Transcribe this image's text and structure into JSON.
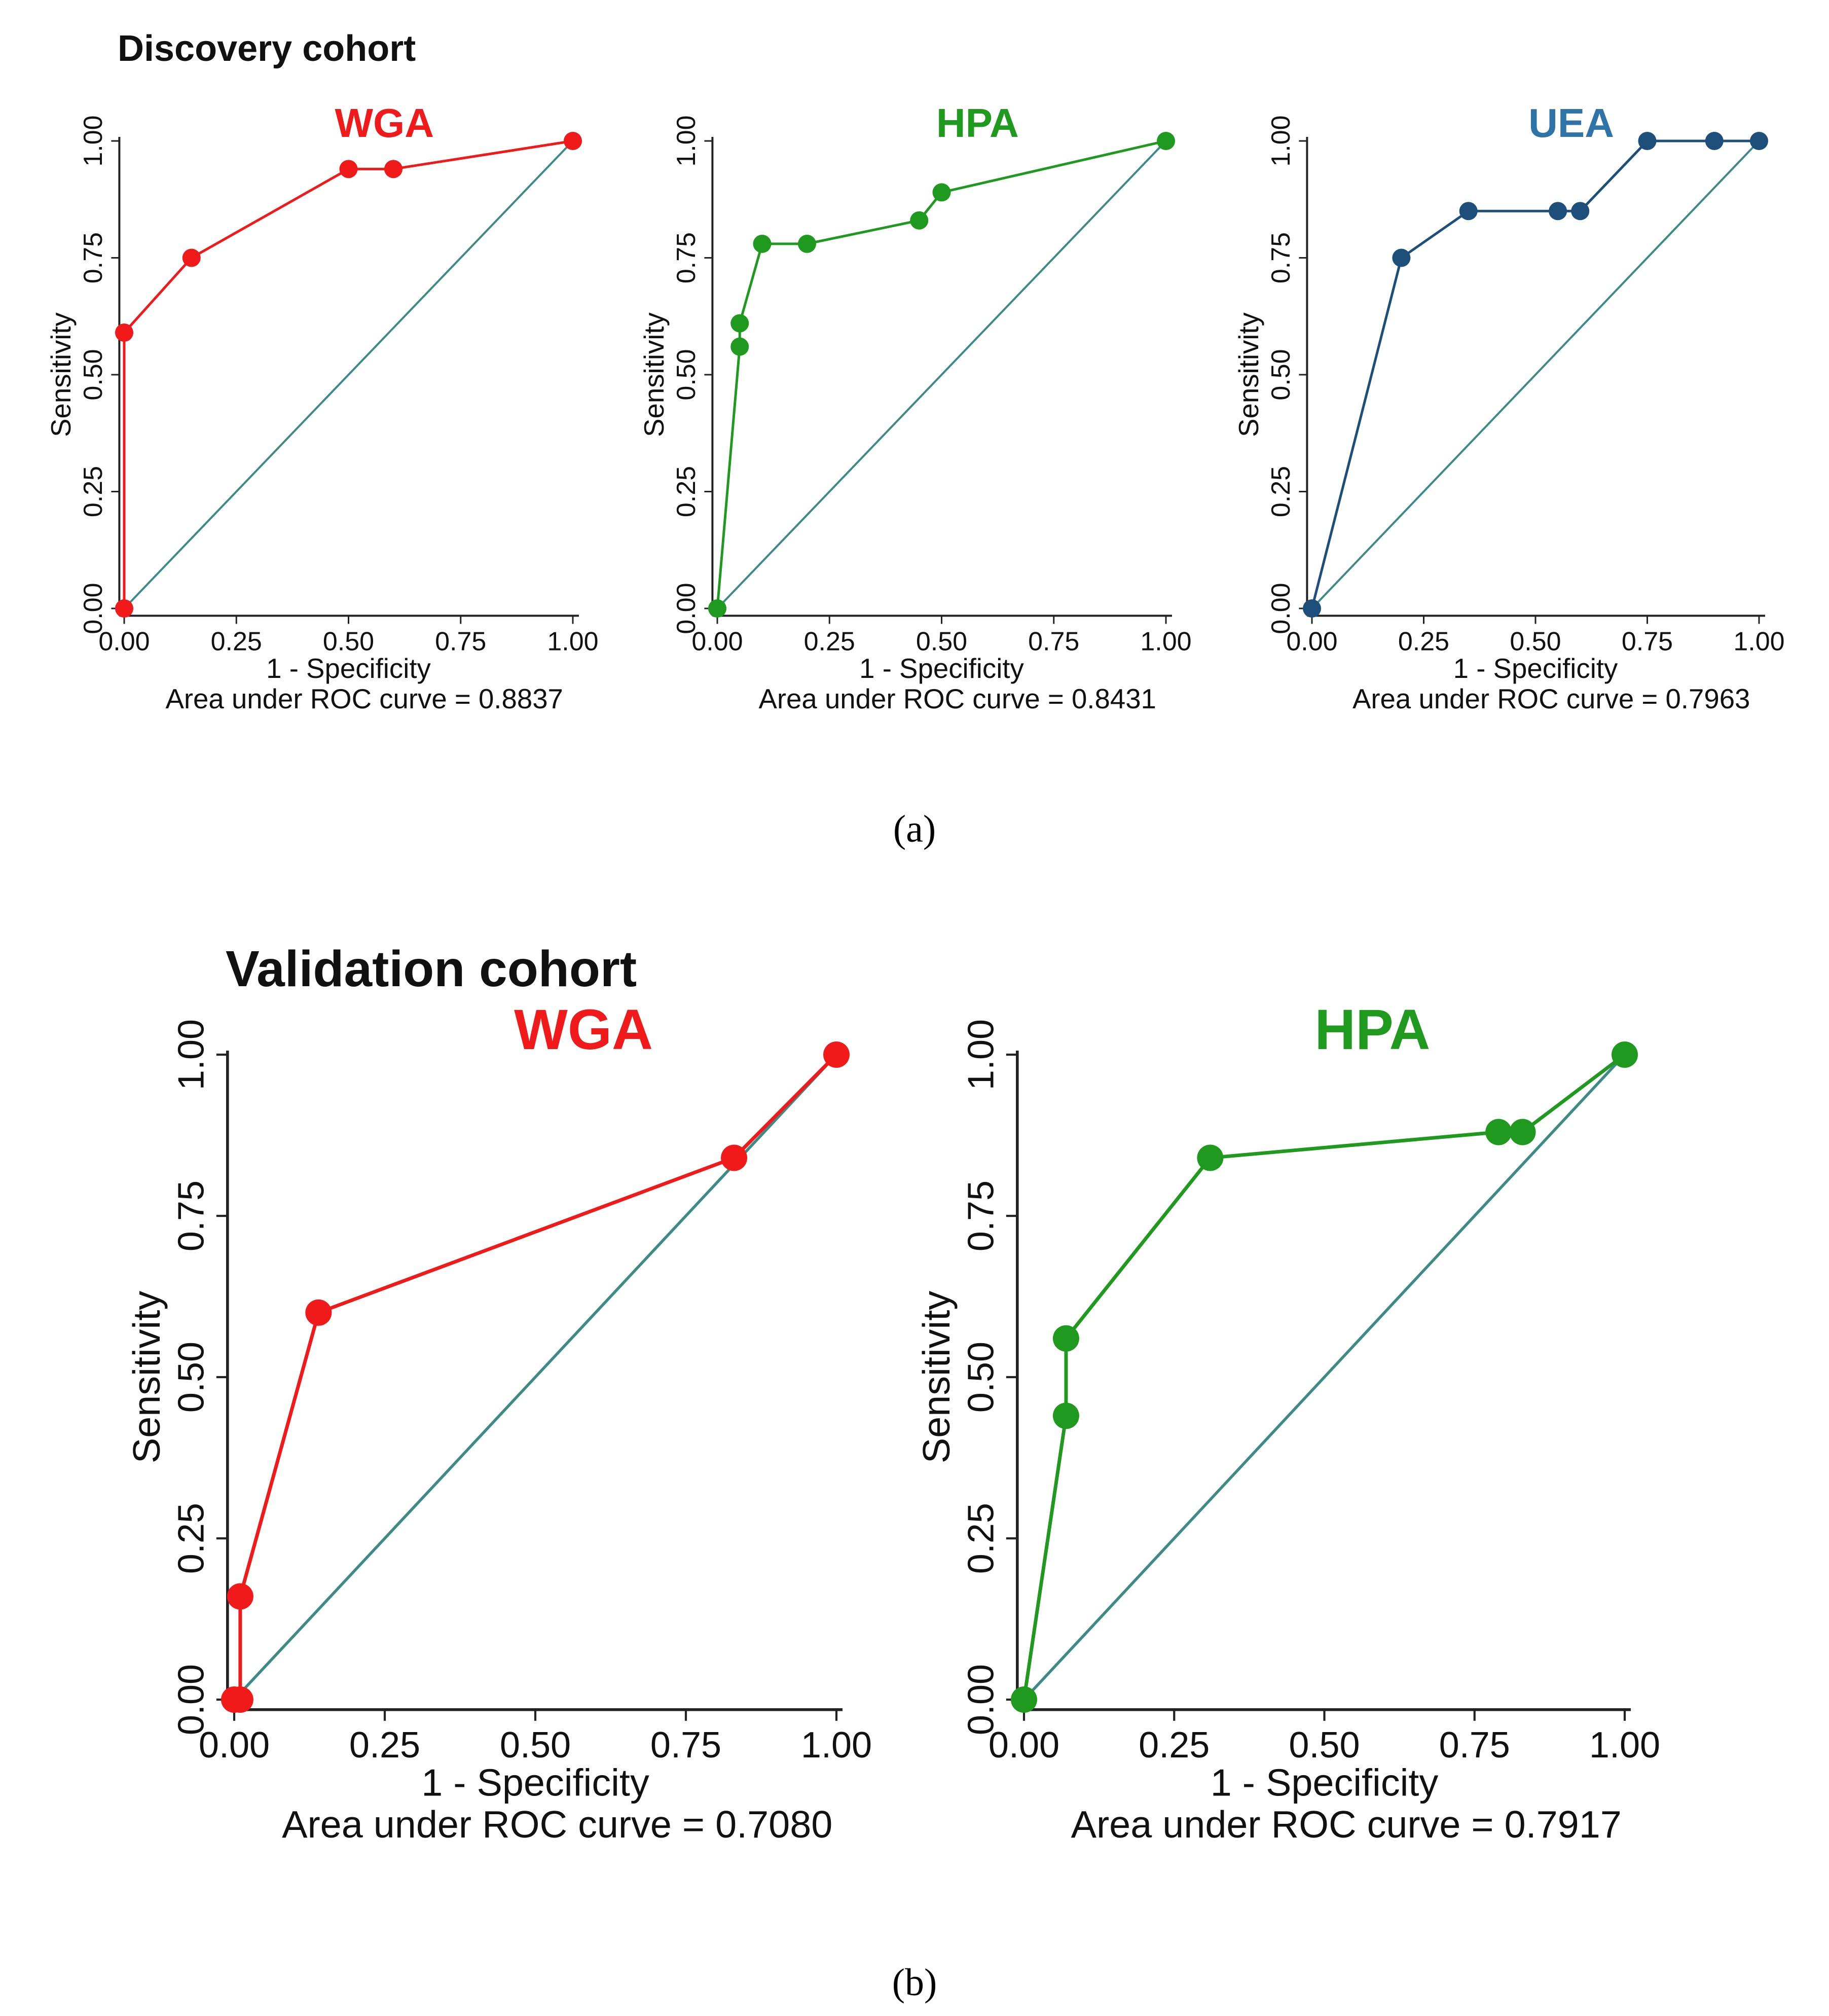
{
  "figure": {
    "cohorts": [
      {
        "title": "Discovery cohort",
        "panel_label": "(a)"
      },
      {
        "title": "Validation cohort",
        "panel_label": "(b)"
      }
    ]
  },
  "colors": {
    "WGA": "#f01a1a",
    "HPA": "#1f9a1f",
    "UEA": "#1e4f7a",
    "UEA_title": "#2f74a8",
    "reference": "#3d8a87",
    "axis": "#222222"
  },
  "chart_data": [
    {
      "type": "line",
      "cohort": "Discovery cohort",
      "title": "WGA",
      "xlabel": "1 - Specificity",
      "ylabel": "Sensitivity",
      "xlim": [
        0,
        1
      ],
      "ylim": [
        0,
        1
      ],
      "xticks": [
        "0.00",
        "0.25",
        "0.50",
        "0.75",
        "1.00"
      ],
      "yticks": [
        "0.00",
        "0.25",
        "0.50",
        "0.75",
        "1.00"
      ],
      "auc_label": "Area under ROC curve = 0.8837",
      "points": [
        [
          0,
          0
        ],
        [
          0,
          0.59
        ],
        [
          0.15,
          0.75
        ],
        [
          0.5,
          0.94
        ],
        [
          0.6,
          0.94
        ],
        [
          1.0,
          1.0
        ]
      ],
      "reference_line": [
        [
          0,
          0
        ],
        [
          1,
          1
        ]
      ]
    },
    {
      "type": "line",
      "cohort": "Discovery cohort",
      "title": "HPA",
      "xlabel": "1 - Specificity",
      "ylabel": "Sensitivity",
      "xlim": [
        0,
        1
      ],
      "ylim": [
        0,
        1
      ],
      "xticks": [
        "0.00",
        "0.25",
        "0.50",
        "0.75",
        "1.00"
      ],
      "yticks": [
        "0.00",
        "0.25",
        "0.50",
        "0.75",
        "1.00"
      ],
      "auc_label": "Area under ROC curve = 0.8431",
      "points": [
        [
          0,
          0
        ],
        [
          0.05,
          0.56
        ],
        [
          0.05,
          0.61
        ],
        [
          0.1,
          0.78
        ],
        [
          0.2,
          0.78
        ],
        [
          0.45,
          0.83
        ],
        [
          0.5,
          0.89
        ],
        [
          1.0,
          1.0
        ]
      ],
      "reference_line": [
        [
          0,
          0
        ],
        [
          1,
          1
        ]
      ]
    },
    {
      "type": "line",
      "cohort": "Discovery cohort",
      "title": "UEA",
      "xlabel": "1 - Specificity",
      "ylabel": "Sensitivity",
      "xlim": [
        0,
        1
      ],
      "ylim": [
        0,
        1
      ],
      "xticks": [
        "0.00",
        "0.25",
        "0.50",
        "0.75",
        "1.00"
      ],
      "yticks": [
        "0.00",
        "0.25",
        "0.50",
        "0.75",
        "1.00"
      ],
      "auc_label": "Area under ROC curve = 0.7963",
      "points": [
        [
          0,
          0
        ],
        [
          0.2,
          0.75
        ],
        [
          0.35,
          0.85
        ],
        [
          0.55,
          0.85
        ],
        [
          0.6,
          0.85
        ],
        [
          0.75,
          1.0
        ],
        [
          0.9,
          1.0
        ],
        [
          1.0,
          1.0
        ]
      ],
      "reference_line": [
        [
          0,
          0
        ],
        [
          1,
          1
        ]
      ]
    },
    {
      "type": "line",
      "cohort": "Validation cohort",
      "title": "WGA",
      "xlabel": "1 - Specificity",
      "ylabel": "Sensitivity",
      "xlim": [
        0,
        1
      ],
      "ylim": [
        0,
        1
      ],
      "xticks": [
        "0.00",
        "0.25",
        "0.50",
        "0.75",
        "1.00"
      ],
      "yticks": [
        "0.00",
        "0.25",
        "0.50",
        "0.75",
        "1.00"
      ],
      "auc_label": "Area under ROC curve = 0.7080",
      "points": [
        [
          0,
          0
        ],
        [
          0.01,
          0
        ],
        [
          0.01,
          0.16
        ],
        [
          0.14,
          0.6
        ],
        [
          0.83,
          0.84
        ],
        [
          1.0,
          1.0
        ]
      ],
      "reference_line": [
        [
          0,
          0
        ],
        [
          1,
          1
        ]
      ]
    },
    {
      "type": "line",
      "cohort": "Validation cohort",
      "title": "HPA",
      "xlabel": "1 - Specificity",
      "ylabel": "Sensitivity",
      "xlim": [
        0,
        1
      ],
      "ylim": [
        0,
        1
      ],
      "xticks": [
        "0.00",
        "0.25",
        "0.50",
        "0.75",
        "1.00"
      ],
      "yticks": [
        "0.00",
        "0.25",
        "0.50",
        "0.75",
        "1.00"
      ],
      "auc_label": "Area under ROC curve = 0.7917",
      "points": [
        [
          0,
          0
        ],
        [
          0.07,
          0.44
        ],
        [
          0.07,
          0.56
        ],
        [
          0.31,
          0.84
        ],
        [
          0.79,
          0.88
        ],
        [
          0.83,
          0.88
        ],
        [
          1.0,
          1.0
        ]
      ],
      "reference_line": [
        [
          0,
          0
        ],
        [
          1,
          1
        ]
      ]
    }
  ]
}
